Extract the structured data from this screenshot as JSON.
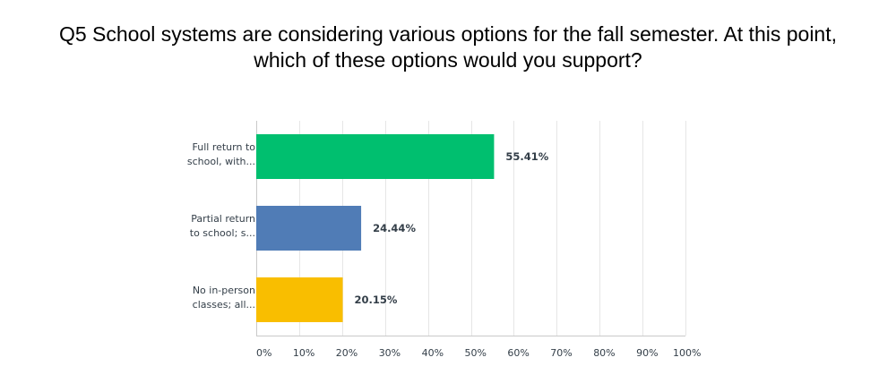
{
  "chart_data": {
    "type": "bar",
    "orientation": "horizontal",
    "title_lines": [
      "Q5 School systems are considering various options for the fall semester. At this point,",
      "which of these options would you support?"
    ],
    "categories": [
      [
        "Full return to",
        "school, with..."
      ],
      [
        "Partial return",
        "to school; s..."
      ],
      [
        "No in-person",
        "classes; all..."
      ]
    ],
    "values": [
      55.41,
      24.44,
      20.15
    ],
    "data_labels": [
      "55.41%",
      "24.44%",
      "20.15%"
    ],
    "colors": [
      "#00bf6f",
      "#507cb6",
      "#f9be00"
    ],
    "xlim": [
      0,
      100
    ],
    "xticks": [
      "0%",
      "10%",
      "20%",
      "30%",
      "40%",
      "50%",
      "60%",
      "70%",
      "80%",
      "90%",
      "100%"
    ],
    "grid": true,
    "legend": "none"
  }
}
